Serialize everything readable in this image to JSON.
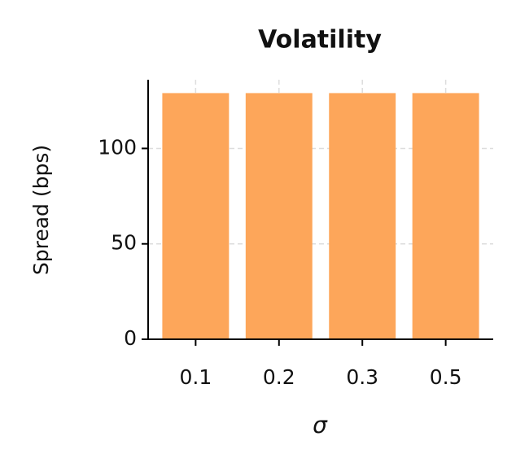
{
  "chart_data": {
    "type": "bar",
    "title": "Volatility",
    "x_label": "σ",
    "y_label": "Spread (bps)",
    "categories": [
      "0.1",
      "0.2",
      "0.3",
      "0.5"
    ],
    "values": [
      129,
      129,
      129,
      129
    ],
    "color": "#fda65a",
    "ylim": [
      0,
      136
    ],
    "yticks": [
      0,
      50,
      100
    ],
    "grid": true
  }
}
